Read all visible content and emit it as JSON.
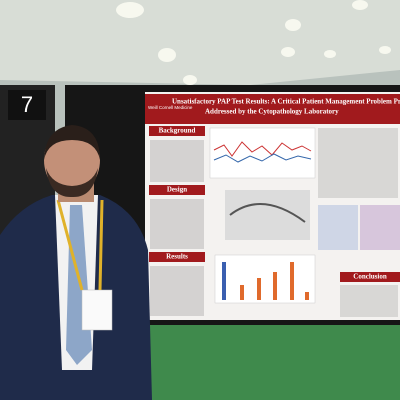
{
  "sign_number": "7",
  "poster": {
    "logo": "Weill Cornell Medicine",
    "title": "Unsatisfactory PAP Test Results: A Critical Patient Management Problem Pre-and",
    "subtitle": "Addressed by the Cytopathology Laboratory",
    "sections": {
      "background": "Background",
      "design": "Design",
      "results": "Results",
      "conclusion": "Conclusion"
    }
  }
}
